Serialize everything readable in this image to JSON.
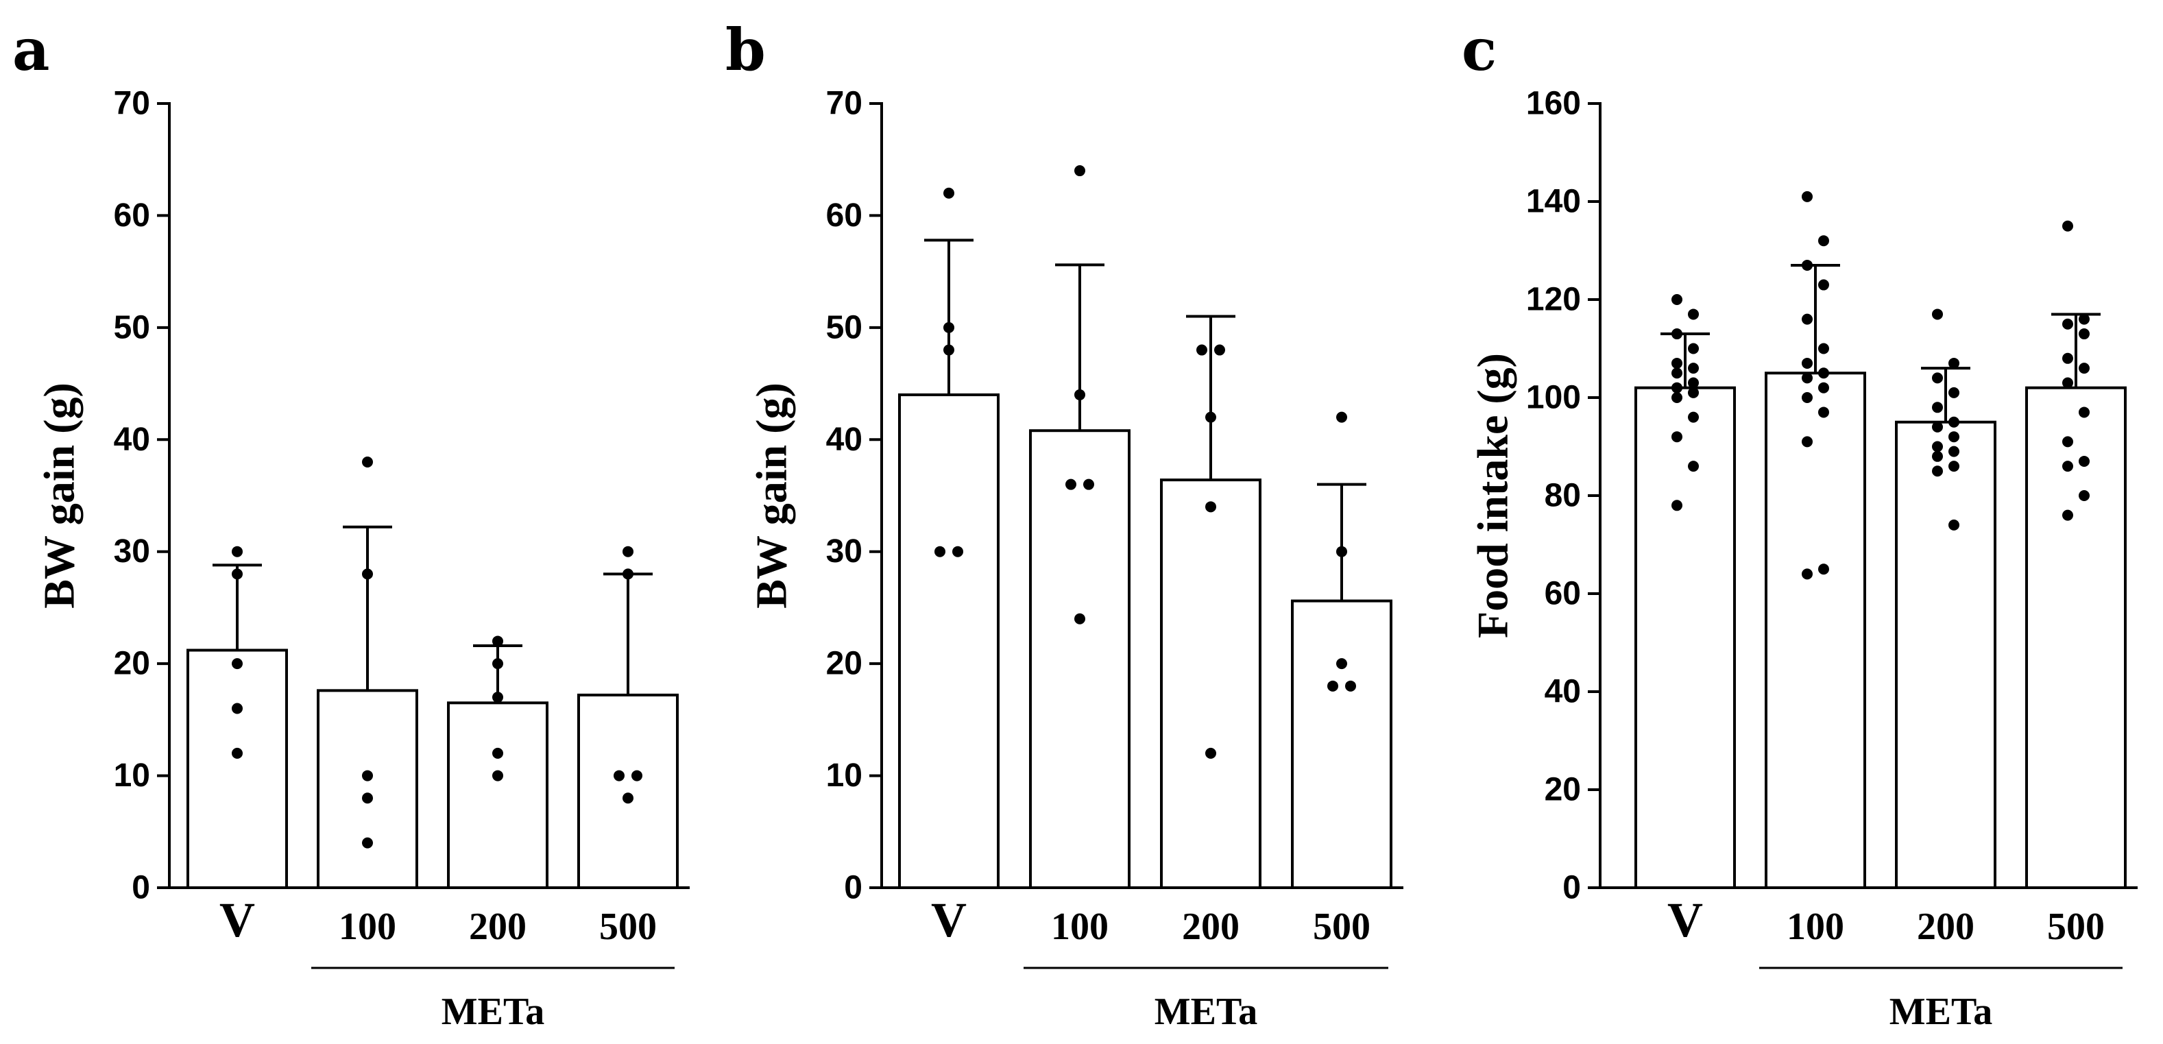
{
  "colors": {
    "ink": "#000000",
    "bar_fill": "#ffffff",
    "background": "#ffffff"
  },
  "chart_data": [
    {
      "type": "bar",
      "panel": "a",
      "title": "",
      "xlabel": "",
      "ylabel": "BW gain (g)",
      "ylim": [
        0,
        70
      ],
      "yticks": [
        0,
        10,
        20,
        30,
        40,
        50,
        60,
        70
      ],
      "grid": false,
      "categories": [
        "V",
        "100",
        "200",
        "500"
      ],
      "group_label": "METa",
      "values": [
        21.2,
        17.6,
        16.5,
        17.2
      ],
      "error_upper": [
        28.8,
        32.2,
        21.6,
        28.0
      ],
      "points": [
        [
          30,
          28,
          20,
          16,
          12
        ],
        [
          38,
          28,
          10,
          8,
          4
        ],
        [
          22,
          20,
          17,
          12,
          10
        ],
        [
          30,
          28,
          10,
          10,
          8
        ]
      ]
    },
    {
      "type": "bar",
      "panel": "b",
      "title": "",
      "xlabel": "",
      "ylabel": "BW gain (g)",
      "ylim": [
        0,
        70
      ],
      "yticks": [
        0,
        10,
        20,
        30,
        40,
        50,
        60,
        70
      ],
      "grid": false,
      "categories": [
        "V",
        "100",
        "200",
        "500"
      ],
      "group_label": "METa",
      "values": [
        44.0,
        40.8,
        36.4,
        25.6
      ],
      "error_upper": [
        57.8,
        55.6,
        51.0,
        36.0
      ],
      "points": [
        [
          62,
          50,
          48,
          30,
          30
        ],
        [
          64,
          44,
          36,
          36,
          24
        ],
        [
          48,
          48,
          42,
          34,
          12
        ],
        [
          42,
          30,
          20,
          18,
          18
        ]
      ]
    },
    {
      "type": "bar",
      "panel": "c",
      "title": "",
      "xlabel": "",
      "ylabel": "Food intake (g)",
      "ylim": [
        0,
        160
      ],
      "yticks": [
        0,
        20,
        40,
        60,
        80,
        100,
        120,
        140,
        160
      ],
      "grid": false,
      "categories": [
        "V",
        "100",
        "200",
        "500"
      ],
      "group_label": "METa",
      "values": [
        102,
        105,
        95,
        102
      ],
      "error_upper": [
        113,
        127,
        106,
        117
      ],
      "points": [
        [
          120,
          117,
          113,
          110,
          107,
          106,
          105,
          103,
          102,
          101,
          100,
          96,
          92,
          86,
          78
        ],
        [
          141,
          132,
          127,
          123,
          116,
          110,
          107,
          105,
          104,
          102,
          100,
          97,
          91,
          65,
          64
        ],
        [
          117,
          107,
          104,
          101,
          98,
          95,
          94,
          92,
          90,
          89,
          88,
          86,
          85,
          74
        ],
        [
          135,
          116,
          115,
          113,
          108,
          106,
          103,
          97,
          91,
          87,
          86,
          80,
          76
        ]
      ]
    }
  ]
}
